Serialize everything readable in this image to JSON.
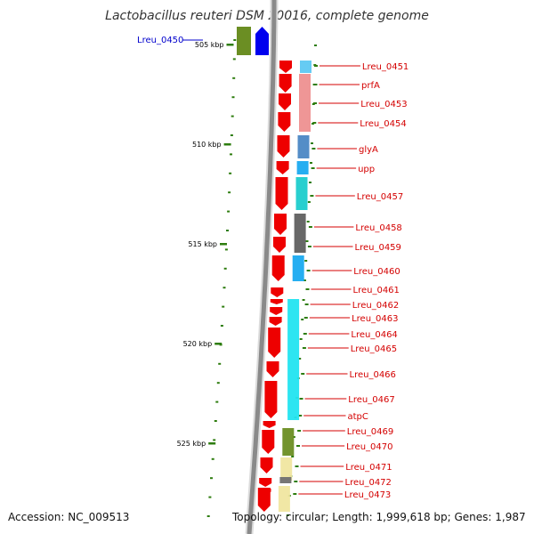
{
  "title": "Lactobacillus reuteri DSM 20016, complete genome",
  "footer": {
    "accession": "Accession: NC_009513",
    "stats": "Topology: circular; Length: 1,999,618 bp; Genes: 1,987"
  },
  "colors": {
    "backbone": "#8a8a8a",
    "backbone_light": "#dcdcdc",
    "forward_gene": "#ee0000",
    "reverse_gene": "#0000ee",
    "ticks": "#2e7d0f",
    "label_red": "#d40000",
    "label_blue": "#0000cc"
  },
  "scale_labels": [
    "505 kbp",
    "510 kbp",
    "515 kbp",
    "520 kbp",
    "525 kbp"
  ],
  "left_gene": {
    "label": "Lreu_0450",
    "cog_color": "#6b8e23"
  },
  "genes": [
    {
      "label": "Lreu_0451",
      "cog_color": "#5ec8f2"
    },
    {
      "label": "prfA",
      "cog_color": "#ee9090"
    },
    {
      "label": "Lreu_0453",
      "cog_color": "#ee9090"
    },
    {
      "label": "Lreu_0454",
      "cog_color": "#ee9090"
    },
    {
      "label": "glyA",
      "cog_color": "#4b87c4"
    },
    {
      "label": "upp",
      "cog_color": "#1aaaf0"
    },
    {
      "label": "Lreu_0457",
      "cog_color": "#1ccccc"
    },
    {
      "label": "Lreu_0458",
      "cog_color": "#606060"
    },
    {
      "label": "Lreu_0459",
      "cog_color": "#606060"
    },
    {
      "label": "Lreu_0460",
      "cog_color": "#1aaaf0"
    },
    {
      "label": "Lreu_0461",
      "cog_color": ""
    },
    {
      "label": "Lreu_0462",
      "cog_color": "#22e4f0"
    },
    {
      "label": "Lreu_0463",
      "cog_color": "#22e4f0"
    },
    {
      "label": "Lreu_0464",
      "cog_color": "#22e4f0"
    },
    {
      "label": "Lreu_0465",
      "cog_color": "#22e4f0"
    },
    {
      "label": "Lreu_0466",
      "cog_color": "#22e4f0"
    },
    {
      "label": "Lreu_0467",
      "cog_color": "#22e4f0"
    },
    {
      "label": "atpC",
      "cog_color": "#22e4f0"
    },
    {
      "label": "Lreu_0469",
      "cog_color": "#6b8e23"
    },
    {
      "label": "Lreu_0470",
      "cog_color": "#6b8e23"
    },
    {
      "label": "Lreu_0471",
      "cog_color": "#f0e6a0"
    },
    {
      "label": "Lreu_0472",
      "cog_color": "#707070"
    },
    {
      "label": "Lreu_0473",
      "cog_color": "#f0e6a0"
    }
  ]
}
